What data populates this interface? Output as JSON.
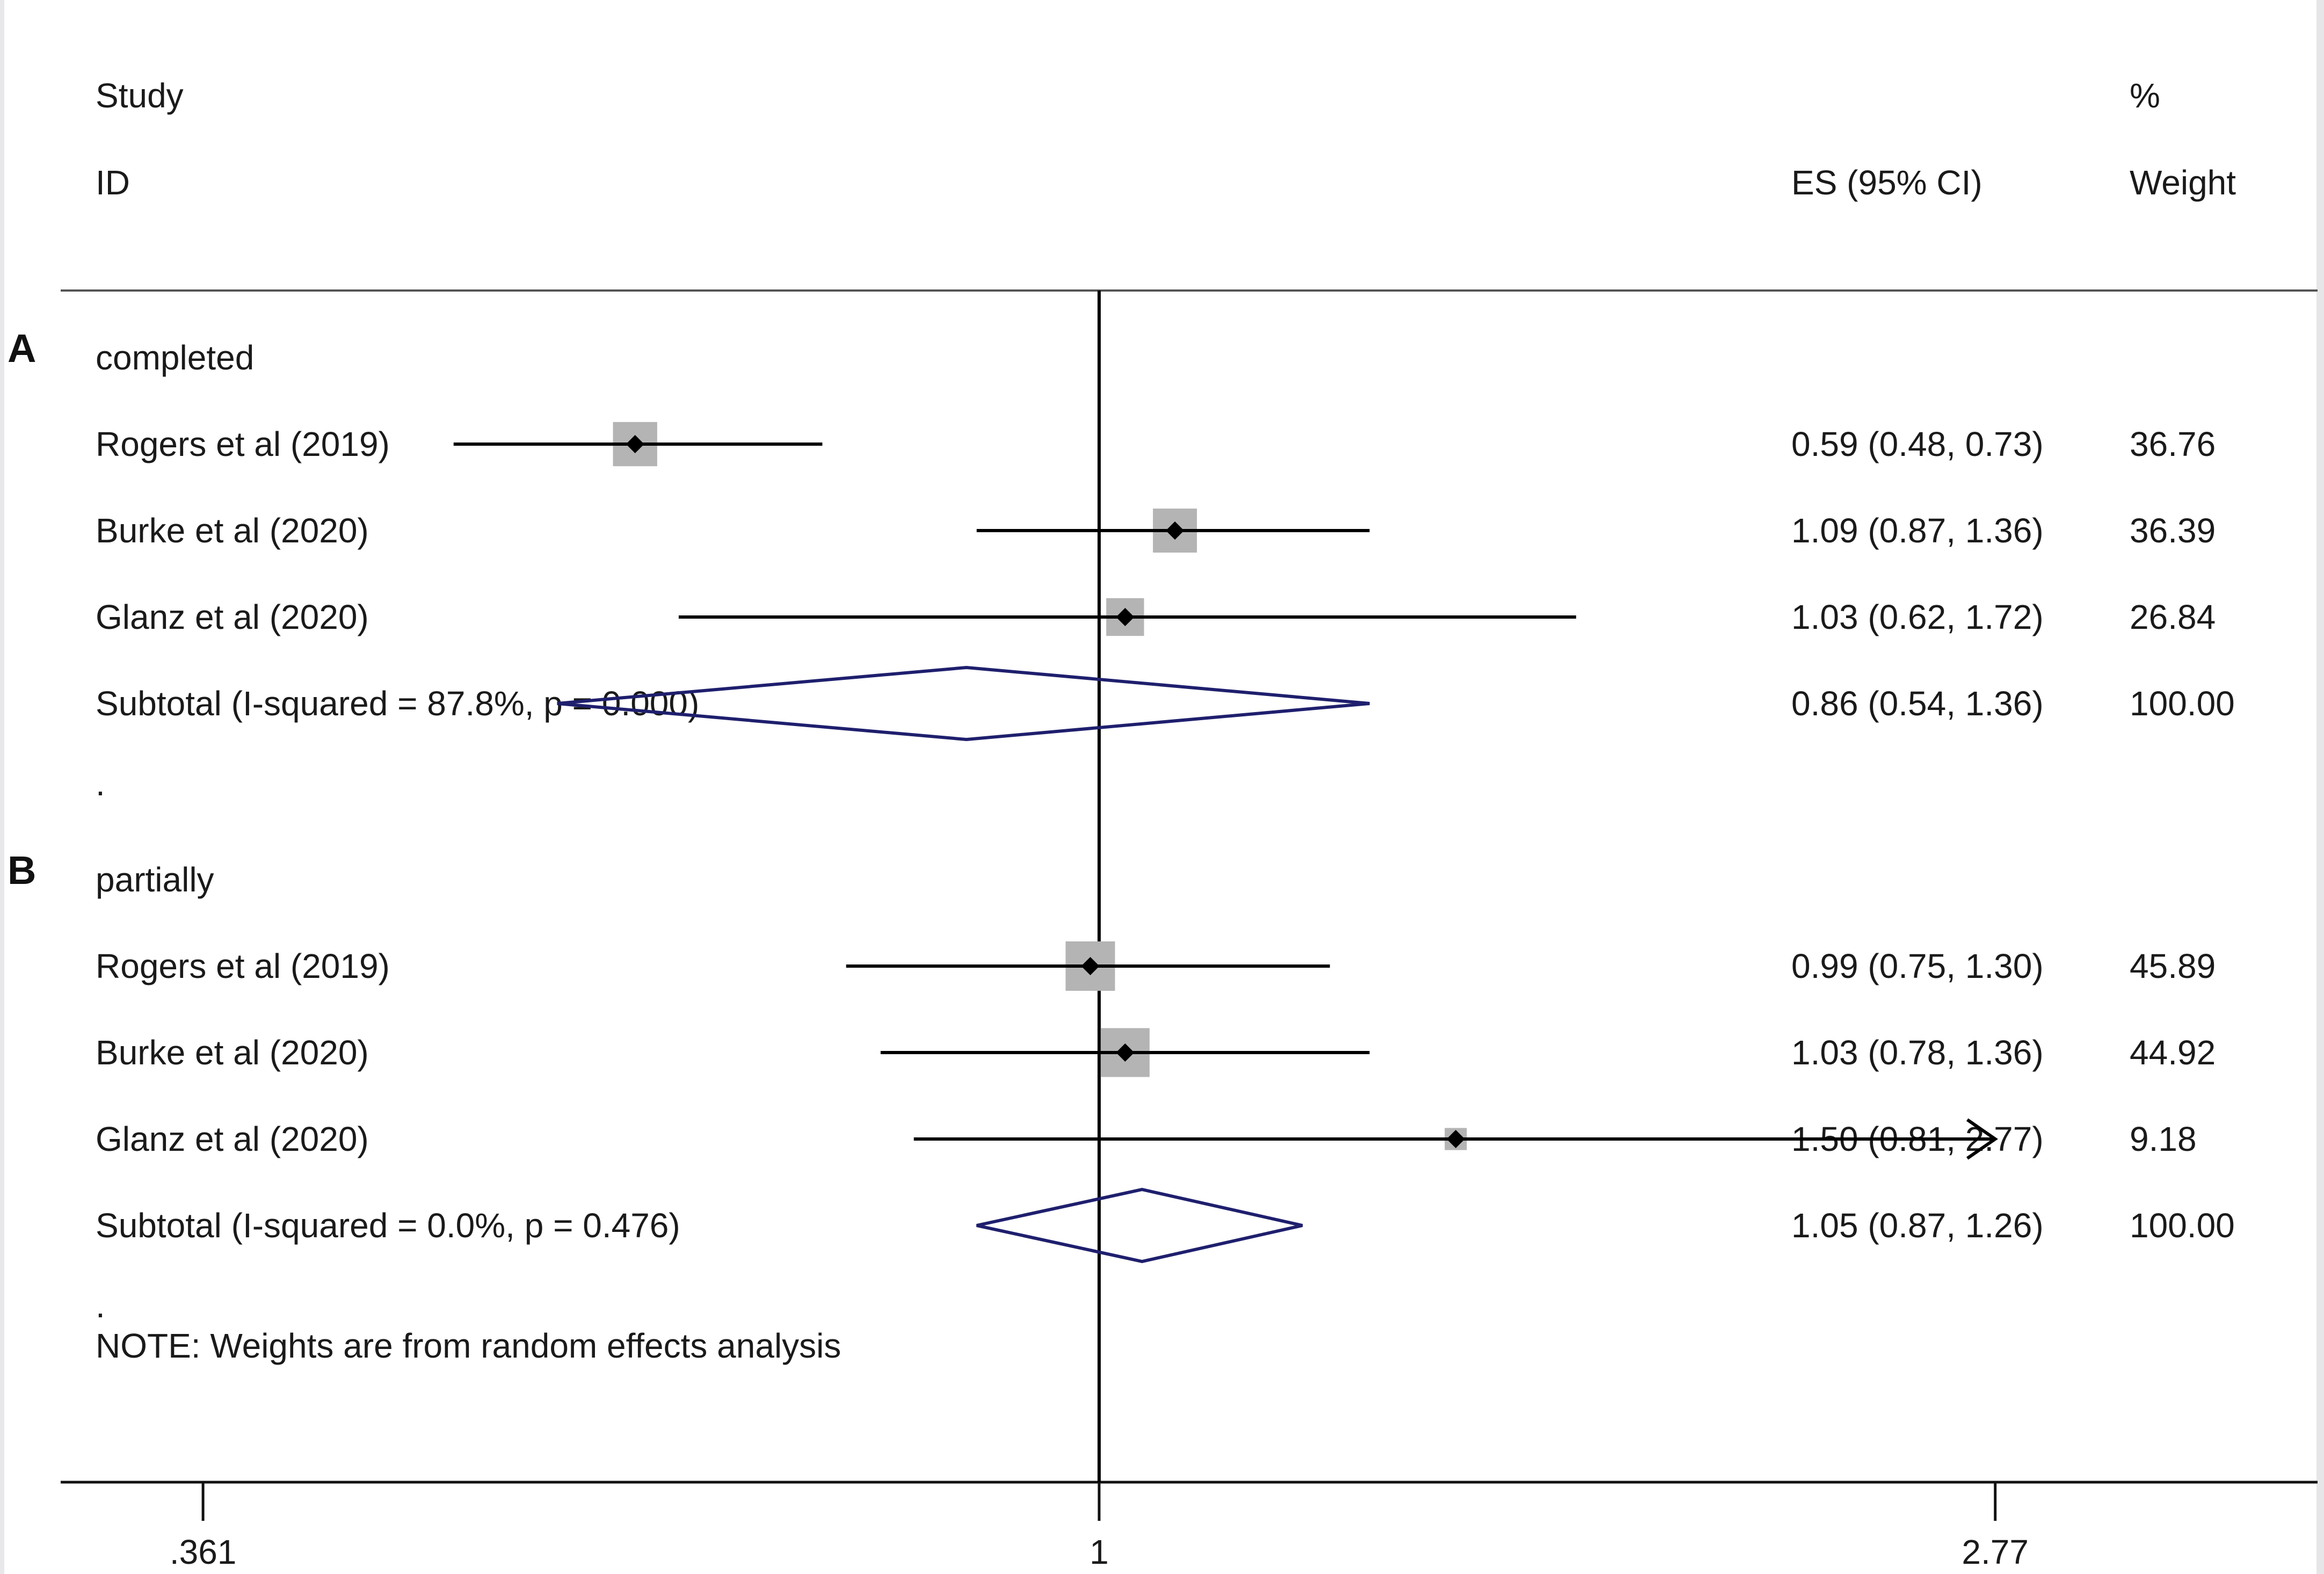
{
  "header": {
    "study": "Study",
    "id": "ID",
    "pct": "%",
    "es": "ES (95% CI)",
    "weight": "Weight"
  },
  "panel_labels": [
    "A",
    "B"
  ],
  "colors": {
    "marker": "#000000",
    "weight_box": "#b4b4b4",
    "diamond": "#1f1f6e",
    "line": "#000000"
  },
  "chart_data": {
    "type": "forest",
    "x_scale": "log",
    "xlim": [
      0.305,
      4.1
    ],
    "null_line": 1,
    "ticks": [
      0.361,
      1,
      2.77
    ],
    "tick_labels": [
      ".361",
      "1",
      "2.77"
    ],
    "groups": [
      {
        "panel": "A",
        "name": "completed",
        "studies": [
          {
            "label": "Rogers et al (2019)",
            "es": 0.59,
            "lo": 0.48,
            "hi": 0.73,
            "es_text": "0.59 (0.48, 0.73)",
            "weight": 36.76,
            "weight_text": "36.76"
          },
          {
            "label": "Burke et al  (2020)",
            "es": 1.09,
            "lo": 0.87,
            "hi": 1.36,
            "es_text": "1.09 (0.87, 1.36)",
            "weight": 36.39,
            "weight_text": "36.39"
          },
          {
            "label": "Glanz et al (2020)",
            "es": 1.03,
            "lo": 0.62,
            "hi": 1.72,
            "es_text": "1.03 (0.62, 1.72)",
            "weight": 26.84,
            "weight_text": "26.84"
          }
        ],
        "subtotal": {
          "label": "Subtotal  (I-squared = 87.8%, p = 0.000)",
          "es": 0.86,
          "lo": 0.54,
          "hi": 1.36,
          "es_text": "0.86 (0.54, 1.36)",
          "weight_text": "100.00"
        },
        "separator": "."
      },
      {
        "panel": "B",
        "name": "partially",
        "studies": [
          {
            "label": "Rogers et al (2019)",
            "es": 0.99,
            "lo": 0.75,
            "hi": 1.3,
            "es_text": "0.99 (0.75, 1.30)",
            "weight": 45.89,
            "weight_text": "45.89"
          },
          {
            "label": "Burke et al  (2020)",
            "es": 1.03,
            "lo": 0.78,
            "hi": 1.36,
            "es_text": "1.03 (0.78, 1.36)",
            "weight": 44.92,
            "weight_text": "44.92"
          },
          {
            "label": "Glanz et al  (2020)",
            "es": 1.5,
            "lo": 0.81,
            "hi": 2.77,
            "es_text": "1.50 (0.81, 2.77)",
            "weight": 9.18,
            "weight_text": "9.18",
            "arrow_right": true
          }
        ],
        "subtotal": {
          "label": "Subtotal  (I-squared = 0.0%, p = 0.476)",
          "es": 1.05,
          "lo": 0.87,
          "hi": 1.26,
          "es_text": "1.05 (0.87, 1.26)",
          "weight_text": "100.00"
        },
        "separator": "."
      }
    ],
    "note": "NOTE: Weights are from random effects analysis"
  }
}
